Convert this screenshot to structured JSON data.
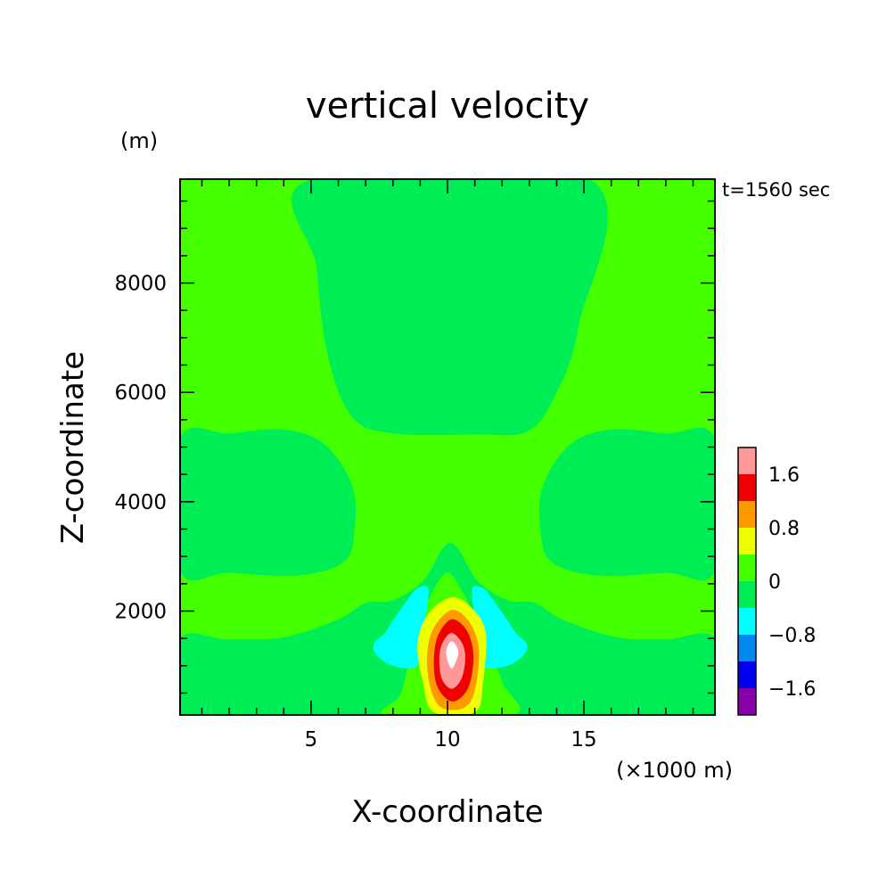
{
  "chart_data": {
    "type": "heatmap",
    "subtype": "filled-contour",
    "title": "vertical velocity",
    "xlabel": "X-coordinate",
    "ylabel": "Z-coordinate",
    "x_unit": "(×1000 m)",
    "y_unit": "(m)",
    "annotation": "t=1560 sec",
    "xlim": [
      0.2,
      19.8
    ],
    "ylim": [
      100,
      9900
    ],
    "xticks": [
      5,
      10,
      15
    ],
    "xtick_labels": [
      "5",
      "10",
      "15"
    ],
    "yticks": [
      2000,
      4000,
      6000,
      8000
    ],
    "ytick_labels": [
      "2000",
      "4000",
      "6000",
      "8000"
    ],
    "colorbar": {
      "levels": [
        -2.0,
        -1.6,
        -1.2,
        -0.8,
        -0.4,
        0,
        0.4,
        0.8,
        1.2,
        1.6,
        2.0
      ],
      "tick_values": [
        -1.6,
        -0.8,
        0,
        0.8,
        1.6
      ],
      "tick_labels": [
        "−1.6",
        "−0.8",
        "0",
        "0.8",
        "1.6"
      ],
      "colors": [
        "#8800aa",
        "#0000ee",
        "#0088ee",
        "#00ffff",
        "#00ee55",
        "#44ff00",
        "#eeff00",
        "#ff9900",
        "#ee0000",
        "#ff9999"
      ],
      "placement": "right"
    },
    "regions": [
      {
        "name": "upper-central-band",
        "level": 0,
        "color": "#00ee55",
        "points": [
          [
            5.0,
            9900
          ],
          [
            15.2,
            9900
          ],
          [
            14.8,
            7200
          ],
          [
            13.9,
            5900
          ],
          [
            12.9,
            5280
          ],
          [
            11.0,
            5230
          ],
          [
            8.0,
            5250
          ],
          [
            6.5,
            5550
          ],
          [
            5.6,
            6700
          ],
          [
            5.2,
            8300
          ]
        ]
      },
      {
        "name": "left-middle-band",
        "level": 0,
        "color": "#00ee55",
        "points": [
          [
            0.2,
            5150
          ],
          [
            2.0,
            5250
          ],
          [
            4.0,
            5320
          ],
          [
            5.5,
            5050
          ],
          [
            6.5,
            4300
          ],
          [
            6.6,
            3500
          ],
          [
            6.2,
            2900
          ],
          [
            4.5,
            2650
          ],
          [
            2.0,
            2700
          ],
          [
            0.2,
            2750
          ]
        ]
      },
      {
        "name": "right-middle-band",
        "level": 0,
        "color": "#00ee55",
        "points": [
          [
            19.8,
            5150
          ],
          [
            18.0,
            5250
          ],
          [
            16.0,
            5320
          ],
          [
            14.5,
            5050
          ],
          [
            13.5,
            4300
          ],
          [
            13.4,
            3500
          ],
          [
            13.8,
            2900
          ],
          [
            15.5,
            2650
          ],
          [
            18.0,
            2700
          ],
          [
            19.8,
            2750
          ]
        ]
      },
      {
        "name": "lower-band",
        "level": 0,
        "color": "#00ee55",
        "points": [
          [
            0.2,
            1500
          ],
          [
            2.0,
            1480
          ],
          [
            4.0,
            1520
          ],
          [
            6.0,
            1850
          ],
          [
            7.0,
            2150
          ],
          [
            8.0,
            2200
          ],
          [
            9.1,
            2550
          ],
          [
            10.1,
            3250
          ],
          [
            11.1,
            2550
          ],
          [
            12.2,
            2200
          ],
          [
            13.2,
            2150
          ],
          [
            14.2,
            1850
          ],
          [
            16.2,
            1520
          ],
          [
            18.0,
            1480
          ],
          [
            19.8,
            1500
          ],
          [
            19.8,
            100
          ],
          [
            0.2,
            100
          ]
        ]
      },
      {
        "name": "inner-positive-small",
        "level": 0.0,
        "color": "#44ff00",
        "points": [
          [
            7.8,
            100
          ],
          [
            8.3,
            500
          ],
          [
            8.8,
            1500
          ],
          [
            9.4,
            2300
          ],
          [
            10.0,
            2700
          ],
          [
            10.6,
            2300
          ],
          [
            11.4,
            1500
          ],
          [
            12.0,
            700
          ],
          [
            12.4,
            100
          ]
        ]
      },
      {
        "name": "left-downdraft",
        "level": -0.8,
        "color": "#00ffff",
        "points": [
          [
            7.3,
            1400
          ],
          [
            7.7,
            1600
          ],
          [
            8.1,
            1900
          ],
          [
            8.6,
            2250
          ],
          [
            8.9,
            2420
          ],
          [
            9.3,
            2380
          ],
          [
            9.1,
            1600
          ],
          [
            8.9,
            1000
          ],
          [
            8.0,
            1000
          ],
          [
            7.4,
            1200
          ]
        ]
      },
      {
        "name": "right-downdraft",
        "level": -0.8,
        "color": "#00ffff",
        "points": [
          [
            12.9,
            1400
          ],
          [
            12.5,
            1600
          ],
          [
            12.1,
            1900
          ],
          [
            11.6,
            2250
          ],
          [
            11.3,
            2420
          ],
          [
            10.9,
            2380
          ],
          [
            11.1,
            1600
          ],
          [
            11.3,
            1000
          ],
          [
            12.2,
            1000
          ],
          [
            12.8,
            1200
          ]
        ]
      },
      {
        "name": "updraft-0.4",
        "level": 0.4,
        "color": "#eeff00",
        "points": [
          [
            10.15,
            2250
          ],
          [
            10.9,
            2050
          ],
          [
            11.4,
            1600
          ],
          [
            11.3,
            700
          ],
          [
            11.0,
            150
          ],
          [
            9.5,
            150
          ],
          [
            9.1,
            700
          ],
          [
            8.9,
            1400
          ],
          [
            9.3,
            1950
          ]
        ]
      },
      {
        "name": "updraft-0.8",
        "level": 0.8,
        "color": "#ff9900",
        "points": [
          [
            10.15,
            2020
          ],
          [
            10.8,
            1800
          ],
          [
            11.15,
            1300
          ],
          [
            11.0,
            550
          ],
          [
            10.6,
            230
          ],
          [
            9.8,
            230
          ],
          [
            9.4,
            550
          ],
          [
            9.25,
            1100
          ],
          [
            9.45,
            1650
          ]
        ]
      },
      {
        "name": "updraft-1.2",
        "level": 1.2,
        "color": "#ee0000",
        "points": [
          [
            10.15,
            1850
          ],
          [
            10.7,
            1650
          ],
          [
            10.95,
            1200
          ],
          [
            10.8,
            650
          ],
          [
            10.4,
            380
          ],
          [
            10.0,
            380
          ],
          [
            9.6,
            650
          ],
          [
            9.5,
            1100
          ],
          [
            9.65,
            1550
          ]
        ]
      },
      {
        "name": "updraft-1.6",
        "level": 1.6,
        "color": "#ff9999",
        "points": [
          [
            10.15,
            1600
          ],
          [
            10.55,
            1400
          ],
          [
            10.65,
            1100
          ],
          [
            10.5,
            750
          ],
          [
            10.15,
            580
          ],
          [
            9.8,
            750
          ],
          [
            9.7,
            1100
          ],
          [
            9.8,
            1400
          ]
        ]
      },
      {
        "name": "updraft-core",
        "level": 2.0,
        "color": "#ffffff",
        "points": [
          [
            10.15,
            1450
          ],
          [
            10.4,
            1250
          ],
          [
            10.15,
            950
          ],
          [
            9.95,
            1250
          ]
        ]
      }
    ]
  }
}
